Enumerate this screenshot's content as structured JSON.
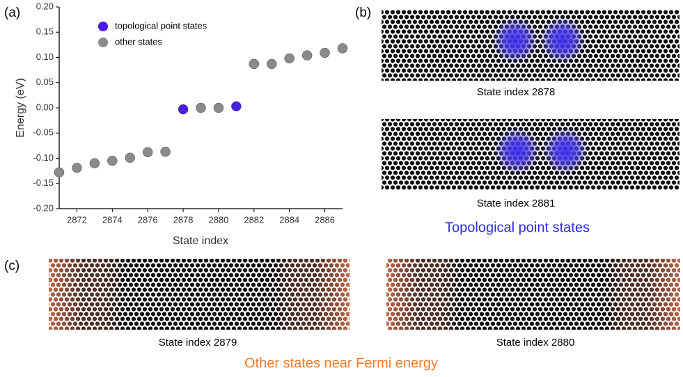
{
  "chart_data": {
    "type": "scatter",
    "x_label": "State index",
    "y_label": "Energy (eV)",
    "xlim": [
      2871,
      2887
    ],
    "xticks": [
      2872,
      2874,
      2876,
      2878,
      2880,
      2882,
      2884,
      2886
    ],
    "ylim": [
      -0.2,
      0.2
    ],
    "yticks": [
      {
        "value": -0.2,
        "label": "-0.20"
      },
      -0.15,
      {
        "value": -0.1,
        "label": "-0.10"
      },
      -0.05,
      {
        "value": 0,
        "label": "0.00"
      },
      0.05,
      {
        "value": 0.1,
        "label": "0.10"
      },
      0.15,
      {
        "value": 0.2,
        "label": "0.20"
      }
    ],
    "series": [
      {
        "name": "topological point states",
        "color": "#4a1ee0",
        "x": [
          2878,
          2881
        ],
        "values": [
          -0.003,
          0.003
        ]
      },
      {
        "name": "other states",
        "color": "#8a8a8a",
        "x": [
          2871,
          2872,
          2873,
          2874,
          2875,
          2876,
          2877,
          2879,
          2880,
          2882,
          2883,
          2884,
          2885,
          2886,
          2887
        ],
        "values": [
          -0.128,
          -0.119,
          -0.11,
          -0.105,
          -0.099,
          -0.088,
          -0.087,
          0.0,
          0.0,
          0.087,
          0.087,
          0.098,
          0.104,
          0.109,
          0.118
        ]
      }
    ]
  },
  "panels": {
    "a": "(a)",
    "b": "(b)",
    "c": "(c)",
    "b_captions": [
      "State index 2878",
      "State index 2881"
    ],
    "b_title": "Topological point states",
    "c_captions": [
      "State index 2879",
      "State index 2880"
    ],
    "c_title": "Other states near Fermi energy"
  }
}
